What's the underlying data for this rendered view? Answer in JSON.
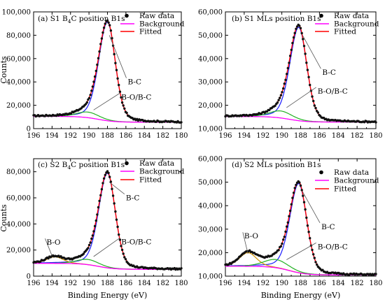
{
  "chart_data": [
    {
      "type": "line",
      "panel_label": "(a)",
      "title": "S1 B4C position B1s",
      "title_parts": [
        "S1 B",
        "4",
        "C position B1s"
      ],
      "xlabel": "",
      "ylabel": "Counts",
      "xlim": [
        196,
        180
      ],
      "ylim": [
        0,
        100000
      ],
      "x_ticks": [
        196,
        194,
        192,
        190,
        188,
        186,
        184,
        182,
        180
      ],
      "y_ticks": [
        0,
        20000,
        40000,
        60000,
        80000,
        100000
      ],
      "y_tick_labels": [
        "0",
        "20,000",
        "40,000",
        "60,000",
        "80,000",
        "100,000"
      ],
      "legend": [
        "Raw data",
        "Background",
        "Fitted"
      ],
      "legend_position": "top-right",
      "annotations": [
        {
          "text": "B-C",
          "x": 185.8,
          "y": 38000,
          "target_x": 187.8,
          "target_y": 80000
        },
        {
          "text": "B-O/B-C",
          "x": 186.5,
          "y": 25000,
          "target_x": 189.5,
          "target_y": 16000
        }
      ],
      "baseline": {
        "left": 10500,
        "right": 5500,
        "center": 189.0
      },
      "series": [
        {
          "name": "B-C",
          "center": 188.0,
          "amplitude": 84500,
          "width": 0.95,
          "sigma_r": 0.85
        },
        {
          "name": "B-O/B-C",
          "center": 190.1,
          "amplitude": 4800,
          "width": 1.2,
          "sigma_r": 1.2
        }
      ]
    },
    {
      "type": "line",
      "panel_label": "(b)",
      "title": "S1 MLs position B1s",
      "title_parts": [
        "S1 MLs position B1s",
        "",
        ""
      ],
      "xlabel": "",
      "ylabel": "",
      "xlim": [
        196,
        180
      ],
      "ylim": [
        10000,
        60000
      ],
      "x_ticks": [
        196,
        194,
        192,
        190,
        188,
        186,
        184,
        182,
        180
      ],
      "y_ticks": [
        10000,
        20000,
        30000,
        40000,
        50000,
        60000
      ],
      "y_tick_labels": [
        "10,000",
        "20,000",
        "30,000",
        "40,000",
        "50,000",
        "60,000"
      ],
      "legend": [
        "Raw data",
        "Background",
        "Fitted"
      ],
      "legend_position": "top-right",
      "annotations": [
        {
          "text": "B-C",
          "x": 185.7,
          "y": 33000,
          "target_x": 187.8,
          "target_y": 50000
        },
        {
          "text": "B-O/B-C",
          "x": 186.2,
          "y": 25000,
          "target_x": 189.5,
          "target_y": 19000
        }
      ],
      "baseline": {
        "left": 15200,
        "right": 12800,
        "center": 189.2
      },
      "series": [
        {
          "name": "B-C",
          "center": 188.2,
          "amplitude": 40000,
          "width": 0.95,
          "sigma_r": 0.85
        },
        {
          "name": "B-O/B-C",
          "center": 190.1,
          "amplitude": 3000,
          "width": 1.2,
          "sigma_r": 1.2
        }
      ]
    },
    {
      "type": "line",
      "panel_label": "(c)",
      "title": "S2 B4C position B1s",
      "title_parts": [
        "S2 B",
        "4",
        "C position B1s"
      ],
      "xlabel": "Binding Energy (eV)",
      "ylabel": "Counts",
      "xlim": [
        196,
        180
      ],
      "ylim": [
        0,
        90000
      ],
      "x_ticks": [
        196,
        194,
        192,
        190,
        188,
        186,
        184,
        182,
        180
      ],
      "y_ticks": [
        0,
        20000,
        40000,
        60000,
        80000
      ],
      "y_tick_labels": [
        "0",
        "20,000",
        "40,000",
        "60,000",
        "80,000"
      ],
      "legend": [
        "Raw data",
        "Background",
        "Fitted"
      ],
      "legend_position": "top-right",
      "annotations": [
        {
          "text": "B-C",
          "x": 186.0,
          "y": 58000,
          "target_x": 187.8,
          "target_y": 72000
        },
        {
          "text": "B-O",
          "x": 194.6,
          "y": 24000,
          "target_x": 194.0,
          "target_y": 15500
        },
        {
          "text": "B-O/B-C",
          "x": 186.5,
          "y": 24500,
          "target_x": 189.5,
          "target_y": 15000
        }
      ],
      "baseline": {
        "left": 9800,
        "right": 5200,
        "center": 189.0
      },
      "series": [
        {
          "name": "B-C",
          "center": 188.0,
          "amplitude": 72500,
          "width": 0.95,
          "sigma_r": 0.85
        },
        {
          "name": "B-O",
          "center": 193.7,
          "amplitude": 5000,
          "width": 0.9,
          "sigma_r": 0.9
        },
        {
          "name": "B-O/B-C",
          "center": 190.1,
          "amplitude": 4000,
          "width": 1.2,
          "sigma_r": 1.2
        }
      ]
    },
    {
      "type": "line",
      "panel_label": "(d)",
      "title": "S2 MLs position B1s",
      "title_parts": [
        "S2 MLs position B1s",
        "",
        ""
      ],
      "xlabel": "Binding Energy (eV)",
      "ylabel": "",
      "xlim": [
        196,
        180
      ],
      "ylim": [
        10000,
        60000
      ],
      "x_ticks": [
        196,
        194,
        192,
        190,
        188,
        186,
        184,
        182,
        180
      ],
      "y_ticks": [
        10000,
        20000,
        30000,
        40000,
        50000,
        60000
      ],
      "y_tick_labels": [
        "10,000",
        "20,000",
        "30,000",
        "40,000",
        "50,000",
        "60,000"
      ],
      "legend": [
        "Raw data",
        "Background",
        "Fitted"
      ],
      "legend_position": "top-right",
      "annotations": [
        {
          "text": "B-C",
          "x": 185.8,
          "y": 30000,
          "target_x": 187.8,
          "target_y": 46000
        },
        {
          "text": "B-O",
          "x": 194.0,
          "y": 26000,
          "target_x": 193.6,
          "target_y": 19500
        },
        {
          "text": "B-O/B-C",
          "x": 186.2,
          "y": 21500,
          "target_x": 189.5,
          "target_y": 17000
        }
      ],
      "baseline": {
        "left": 14200,
        "right": 10500,
        "center": 189.2
      },
      "series": [
        {
          "name": "B-C",
          "center": 188.2,
          "amplitude": 38000,
          "width": 0.95,
          "sigma_r": 0.85
        },
        {
          "name": "B-O",
          "center": 193.6,
          "amplitude": 5800,
          "width": 0.9,
          "sigma_r": 0.9
        },
        {
          "name": "B-O/B-C",
          "center": 190.6,
          "amplitude": 3500,
          "width": 1.3,
          "sigma_r": 1.3
        }
      ]
    }
  ],
  "colors": {
    "raw_data": "#111111",
    "background": "#ff00ff",
    "fitted": "#ff0000",
    "bc_component": "#1a1aff",
    "bo_bc_component": "#22b022",
    "bo_component": "#d09000"
  }
}
